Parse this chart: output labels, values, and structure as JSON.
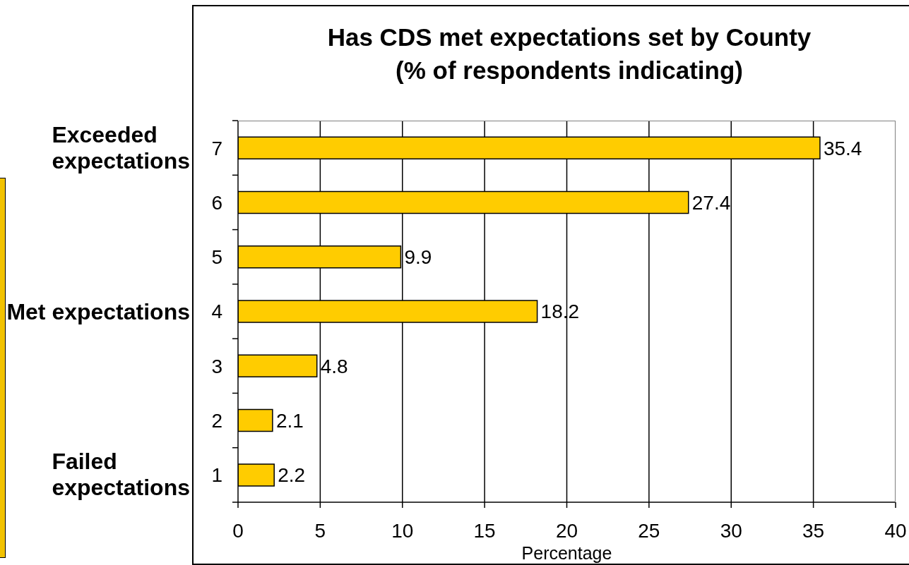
{
  "chart_data": {
    "type": "bar",
    "orientation": "horizontal",
    "title": "Has CDS met expectations set by County",
    "subtitle": "(% of respondents indicating)",
    "xlabel": "Percentage",
    "categories": [
      "7",
      "6",
      "5",
      "4",
      "3",
      "2",
      "1"
    ],
    "values": [
      35.4,
      27.4,
      9.9,
      18.2,
      4.8,
      2.1,
      2.2
    ],
    "color": "#ffcc00",
    "xlim": [
      0,
      40
    ],
    "xticks": [
      0,
      5,
      10,
      15,
      20,
      25,
      30,
      35,
      40
    ],
    "grid": "x",
    "data_labels": true,
    "annotations": [
      "Exceeded expectations",
      "Met expectations",
      "Failed expectations"
    ]
  }
}
